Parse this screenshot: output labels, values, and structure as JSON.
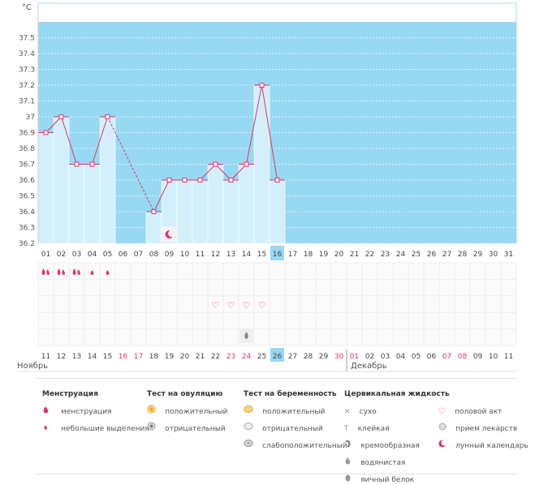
{
  "chart_data": {
    "type": "line",
    "ylabel": "°C",
    "y_ticks": [
      "37.5",
      "37.4",
      "37.3",
      "37.2",
      "37.1",
      "37",
      "36.9",
      "36.8",
      "36.7",
      "36.6",
      "36.5",
      "36.4",
      "36.3",
      "36.2"
    ],
    "ylim": [
      36.2,
      37.6
    ],
    "days": [
      "01",
      "02",
      "03",
      "04",
      "05",
      "06",
      "07",
      "08",
      "09",
      "10",
      "11",
      "12",
      "13",
      "14",
      "15",
      "16",
      "17",
      "18",
      "19",
      "20",
      "21",
      "22",
      "23",
      "24",
      "25",
      "26",
      "27",
      "28",
      "29",
      "30",
      "31"
    ],
    "current_day": "16",
    "series": [
      {
        "values": [
          36.9,
          37.0,
          36.7,
          36.7,
          37.0,
          null,
          null,
          36.4,
          36.6,
          36.6,
          36.6,
          36.7,
          36.6,
          36.7,
          37.2,
          36.6,
          null,
          null,
          null,
          null,
          null,
          null,
          null,
          null,
          null,
          null,
          null,
          null,
          null,
          null,
          null
        ]
      }
    ],
    "dashed_gap": [
      5,
      8
    ],
    "grid": true
  },
  "tracking": {
    "menstruation": [
      "heavy",
      "heavy",
      "heavy",
      "light",
      "light"
    ],
    "sex_days": [
      12,
      13,
      14,
      15
    ],
    "fluid_day": 14,
    "moon_day": 9
  },
  "dates": {
    "row": [
      {
        "d": "11",
        "red": false
      },
      {
        "d": "12",
        "red": false
      },
      {
        "d": "13",
        "red": false
      },
      {
        "d": "14",
        "red": false
      },
      {
        "d": "15",
        "red": false
      },
      {
        "d": "16",
        "red": true
      },
      {
        "d": "17",
        "red": true
      },
      {
        "d": "18",
        "red": false
      },
      {
        "d": "19",
        "red": false
      },
      {
        "d": "20",
        "red": false
      },
      {
        "d": "21",
        "red": false
      },
      {
        "d": "22",
        "red": false
      },
      {
        "d": "23",
        "red": true
      },
      {
        "d": "24",
        "red": true
      },
      {
        "d": "25",
        "red": false
      },
      {
        "d": "26",
        "red": false
      },
      {
        "d": "27",
        "red": false
      },
      {
        "d": "28",
        "red": false
      },
      {
        "d": "29",
        "red": false
      },
      {
        "d": "30",
        "red": true
      },
      {
        "d": "01",
        "red": true
      },
      {
        "d": "02",
        "red": false
      },
      {
        "d": "03",
        "red": false
      },
      {
        "d": "04",
        "red": false
      },
      {
        "d": "05",
        "red": false
      },
      {
        "d": "06",
        "red": false
      },
      {
        "d": "07",
        "red": true
      },
      {
        "d": "08",
        "red": true
      },
      {
        "d": "09",
        "red": false
      },
      {
        "d": "10",
        "red": false
      },
      {
        "d": "11",
        "red": false
      }
    ],
    "current": "26",
    "month_left": "Ноябрь",
    "month_right": "Декабрь"
  },
  "legend": {
    "menstruation": {
      "title": "Менструация",
      "heavy": "менструация",
      "light": "небольшие выделения"
    },
    "ovulation": {
      "title": "Тест на овуляцию",
      "positive": "положительный",
      "negative": "отрицательный"
    },
    "pregnancy": {
      "title": "Тест на беременность",
      "positive": "положительный",
      "negative": "отрицательный",
      "weak": "слабоположительный"
    },
    "fluid": {
      "title": "Цервикальная жидкость",
      "dry": "сухо",
      "sticky": "клейкая",
      "creamy": "кремообразная",
      "watery": "водянистая",
      "eggwhite": "яичный белок"
    },
    "other": {
      "sex": "половой акт",
      "meds": "прием лекарств",
      "moon": "лунный календарь"
    }
  },
  "colors": {
    "sky": "#97d9f2",
    "bar": "#d4effc",
    "line": "#e0336b",
    "grid": "#f0f0f0"
  }
}
